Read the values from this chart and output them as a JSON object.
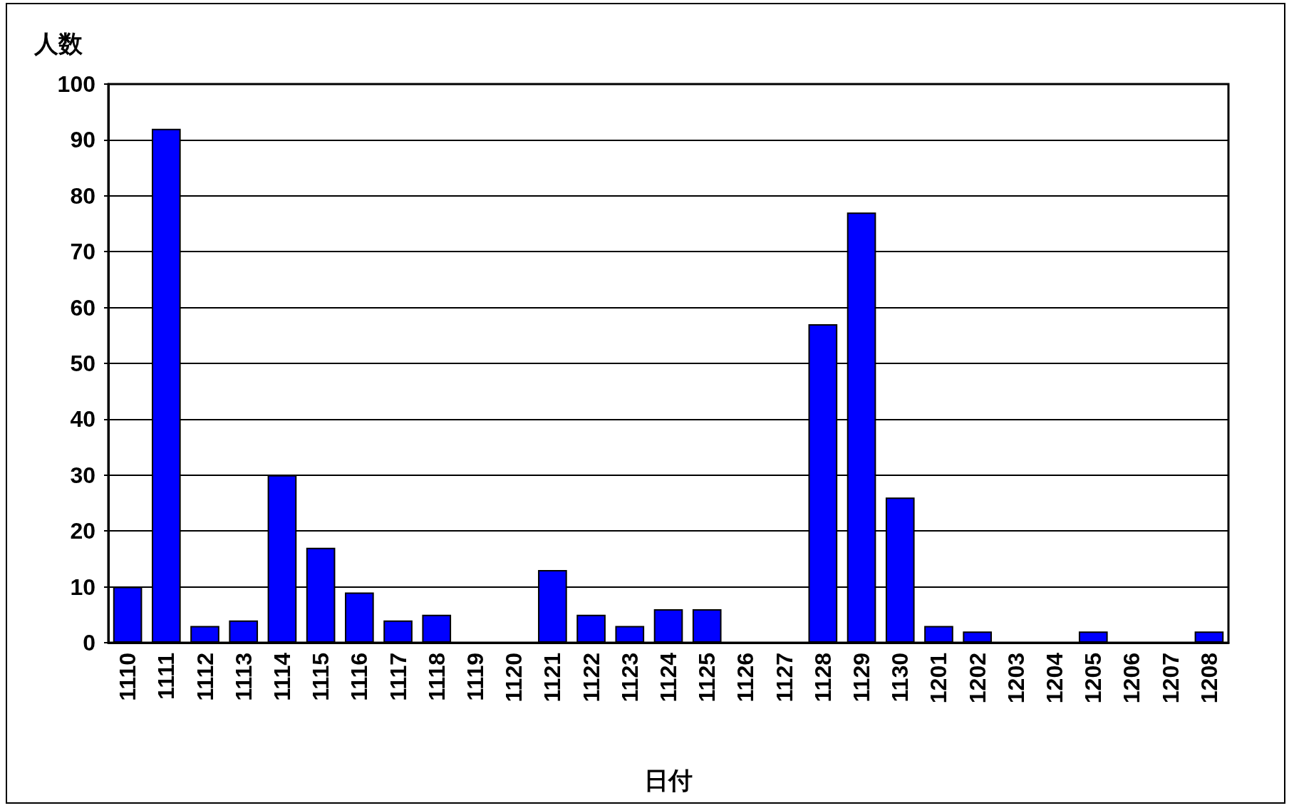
{
  "chart_data": {
    "type": "bar",
    "ylabel": "人数",
    "xlabel": "日付",
    "categories": [
      "1110",
      "1111",
      "1112",
      "1113",
      "1114",
      "1115",
      "1116",
      "1117",
      "1118",
      "1119",
      "1120",
      "1121",
      "1122",
      "1123",
      "1124",
      "1125",
      "1126",
      "1127",
      "1128",
      "1129",
      "1130",
      "1201",
      "1202",
      "1203",
      "1204",
      "1205",
      "1206",
      "1207",
      "1208"
    ],
    "values": [
      10,
      92,
      3,
      4,
      30,
      17,
      9,
      4,
      5,
      0,
      0,
      13,
      5,
      3,
      6,
      6,
      0,
      0,
      57,
      77,
      26,
      3,
      2,
      0,
      0,
      2,
      0,
      0,
      2
    ],
    "color": "#0000ff",
    "ylim": [
      0,
      100
    ],
    "yticks": [
      0,
      10,
      20,
      30,
      40,
      50,
      60,
      70,
      80,
      90,
      100
    ],
    "grid": "y"
  }
}
